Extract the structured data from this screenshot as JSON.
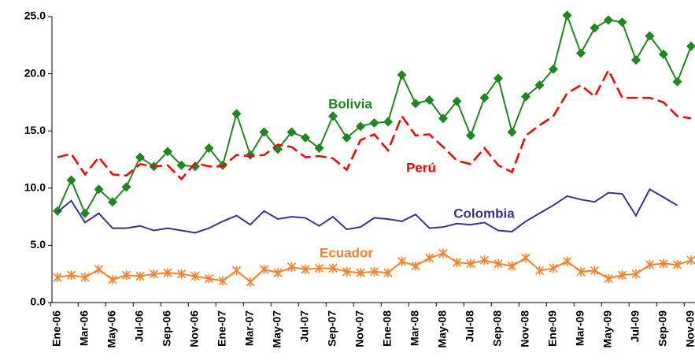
{
  "chart_data": {
    "type": "line",
    "categories": [
      "Ene-06",
      null,
      "Mar-06",
      null,
      "May-06",
      null,
      "Jul-06",
      null,
      "Sep-06",
      null,
      "Nov-06",
      null,
      "Ene-07",
      null,
      "Mar-07",
      null,
      "May-07",
      null,
      "Jul-07",
      null,
      "Sep-07",
      null,
      "Nov-07",
      null,
      "Ene-08",
      null,
      "Mar-08",
      null,
      "May-08",
      null,
      "Jul-08",
      null,
      "Sep-08",
      null,
      "Nov-08",
      null,
      "Ene-09",
      null,
      "Mar-09",
      null,
      "May-09",
      null,
      "Jul-09",
      null,
      "Sep-09",
      null,
      "Nov-09"
    ],
    "series": [
      {
        "name": "Bolivia",
        "color": "#1a8a1a",
        "marker": "diamond",
        "values": [
          8.0,
          10.7,
          7.8,
          9.9,
          8.8,
          10.1,
          12.7,
          11.9,
          13.2,
          12.0,
          11.9,
          13.5,
          12.0,
          16.5,
          12.9,
          14.9,
          13.4,
          14.9,
          14.4,
          13.5,
          16.3,
          14.4,
          15.4,
          15.7,
          15.8,
          19.9,
          17.4,
          17.7,
          16.1,
          17.6,
          14.6,
          17.9,
          19.6,
          14.9,
          18.0,
          19.0,
          20.4,
          25.1,
          21.8,
          24.0,
          24.7,
          24.5,
          21.2,
          23.3,
          21.7,
          19.3,
          22.4
        ]
      },
      {
        "name": "Perú",
        "color": "#ff0000",
        "dashed": true,
        "values": [
          12.7,
          13.0,
          11.2,
          12.7,
          11.2,
          11.1,
          12.1,
          11.9,
          12.0,
          10.8,
          12.2,
          11.9,
          11.9,
          12.9,
          12.8,
          12.9,
          13.8,
          13.6,
          12.7,
          12.8,
          12.6,
          11.6,
          14.2,
          14.7,
          13.3,
          16.3,
          14.6,
          14.7,
          13.6,
          12.4,
          12.1,
          13.5,
          12.0,
          11.4,
          14.6,
          15.5,
          16.3,
          18.3,
          19.0,
          18.0,
          20.3,
          17.9,
          17.9,
          17.9,
          17.5,
          16.3,
          16.1
        ]
      },
      {
        "name": "Colombia",
        "color": "#333399",
        "values": [
          7.9,
          8.9,
          7.0,
          7.8,
          6.5,
          6.5,
          6.7,
          6.3,
          6.5,
          6.3,
          6.1,
          6.5,
          7.1,
          7.6,
          6.8,
          8.0,
          7.3,
          7.5,
          7.4,
          6.7,
          7.5,
          6.4,
          6.6,
          7.4,
          7.3,
          7.1,
          7.7,
          6.5,
          6.6,
          6.9,
          6.8,
          7.0,
          6.3,
          6.2,
          7.1,
          7.8,
          8.5,
          9.3,
          9.0,
          8.8,
          9.6,
          9.5,
          7.6,
          9.9,
          9.2,
          8.5,
          null
        ]
      },
      {
        "name": "Ecuador",
        "color": "#ff7f27",
        "marker": "star",
        "values": [
          2.2,
          2.4,
          2.2,
          2.9,
          2.0,
          2.4,
          2.3,
          2.5,
          2.6,
          2.5,
          2.3,
          2.1,
          1.9,
          2.8,
          1.8,
          2.9,
          2.6,
          3.1,
          2.9,
          3.0,
          3.0,
          2.7,
          2.6,
          2.7,
          2.6,
          3.6,
          3.2,
          3.9,
          4.3,
          3.5,
          3.4,
          3.7,
          3.4,
          3.2,
          3.9,
          2.8,
          3.0,
          3.6,
          2.7,
          2.8,
          2.1,
          2.4,
          2.5,
          3.3,
          3.4,
          3.3,
          3.7
        ]
      }
    ],
    "ylim": [
      0,
      25
    ],
    "yticks": [
      {
        "value": 0,
        "label": "0.0"
      },
      {
        "value": 5,
        "label": "5.0"
      },
      {
        "value": 10,
        "label": "10.0"
      },
      {
        "value": 15,
        "label": "15.0"
      },
      {
        "value": 20,
        "label": "20.0"
      },
      {
        "value": 25,
        "label": "25.0"
      }
    ],
    "grid": false
  }
}
